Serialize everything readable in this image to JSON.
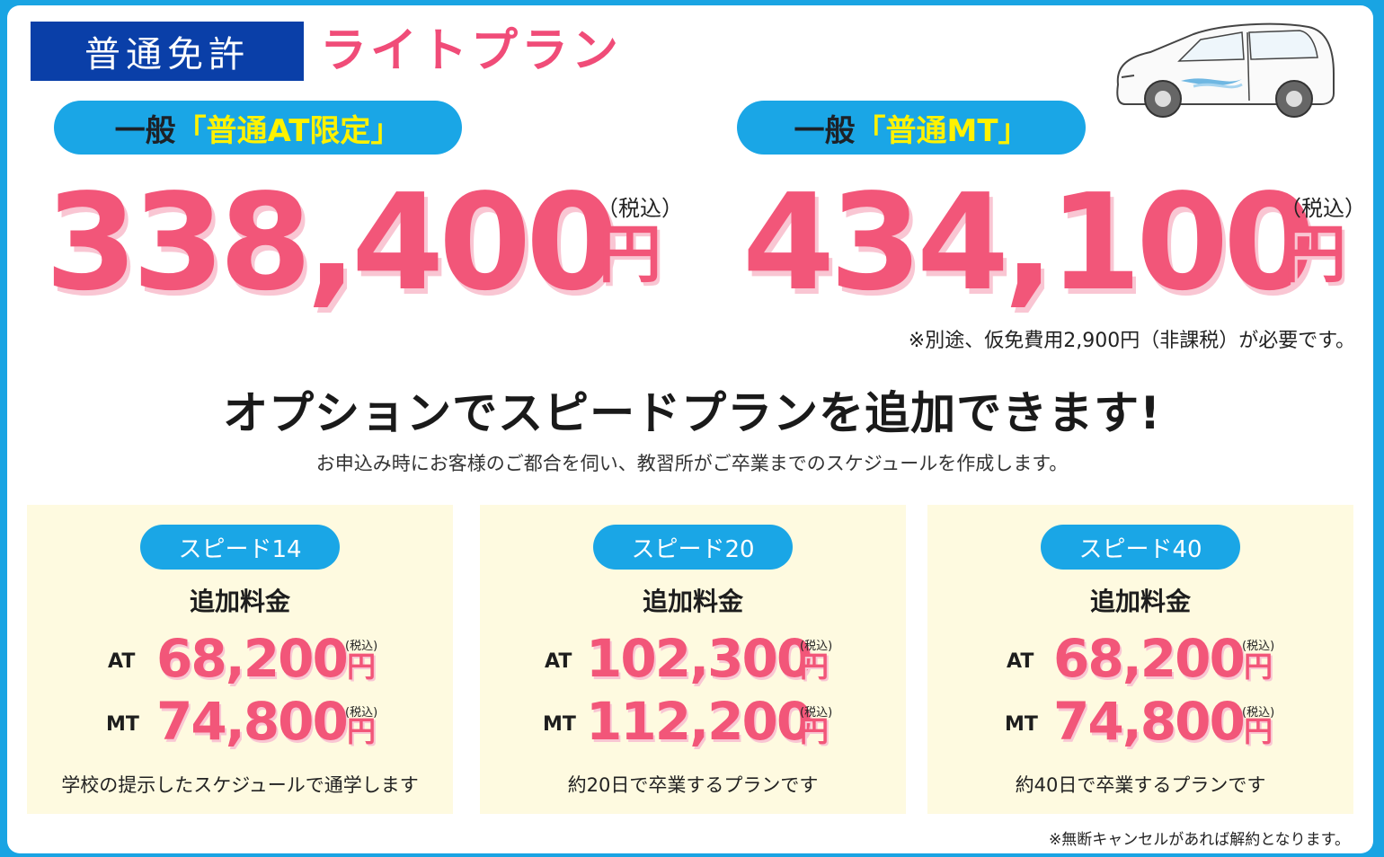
{
  "header": {
    "license_label": "普通免許",
    "plan_title": "ライトプラン"
  },
  "plans": [
    {
      "label_prefix": "一般",
      "label_highlight": "「普通AT限定」",
      "price": "338,400",
      "tax_note": "（税込）",
      "yen": "円"
    },
    {
      "label_prefix": "一般",
      "label_highlight": "「普通MT」",
      "price": "434,100",
      "tax_note": "（税込）",
      "yen": "円"
    }
  ],
  "extra_fee_note": "※別途、仮免費用2,900円（非課税）が必要です。",
  "headline": "オプションでスピードプランを追加できます!",
  "subline": "お申込み時にお客様のご都合を伺い、教習所がご卒業までのスケジュールを作成します。",
  "options": [
    {
      "name": "スピード14",
      "fee_label": "追加料金",
      "at_label": "AT",
      "at_price": "68,200",
      "mt_label": "MT",
      "mt_price": "74,800",
      "yen": "円",
      "tax": "(税込)",
      "description": "学校の提示したスケジュールで通学します"
    },
    {
      "name": "スピード20",
      "fee_label": "追加料金",
      "at_label": "AT",
      "at_price": "102,300",
      "mt_label": "MT",
      "mt_price": "112,200",
      "yen": "円",
      "tax": "(税込)",
      "description": "約20日で卒業するプランです"
    },
    {
      "name": "スピード40",
      "fee_label": "追加料金",
      "at_label": "AT",
      "at_price": "68,200",
      "mt_label": "MT",
      "mt_price": "74,800",
      "yen": "円",
      "tax": "(税込)",
      "description": "約40日で卒業するプランです"
    }
  ],
  "cancel_note": "※無断キャンセルがあれば解約となります。",
  "colors": {
    "frame_blue": "#19a4e3",
    "navy": "#0a3fa8",
    "pink": "#f25679",
    "pill_blue": "#1aa6e6",
    "highlight_yellow": "#fff200",
    "box_cream": "#fefae0"
  },
  "icons": {
    "car": "car-illustration"
  }
}
